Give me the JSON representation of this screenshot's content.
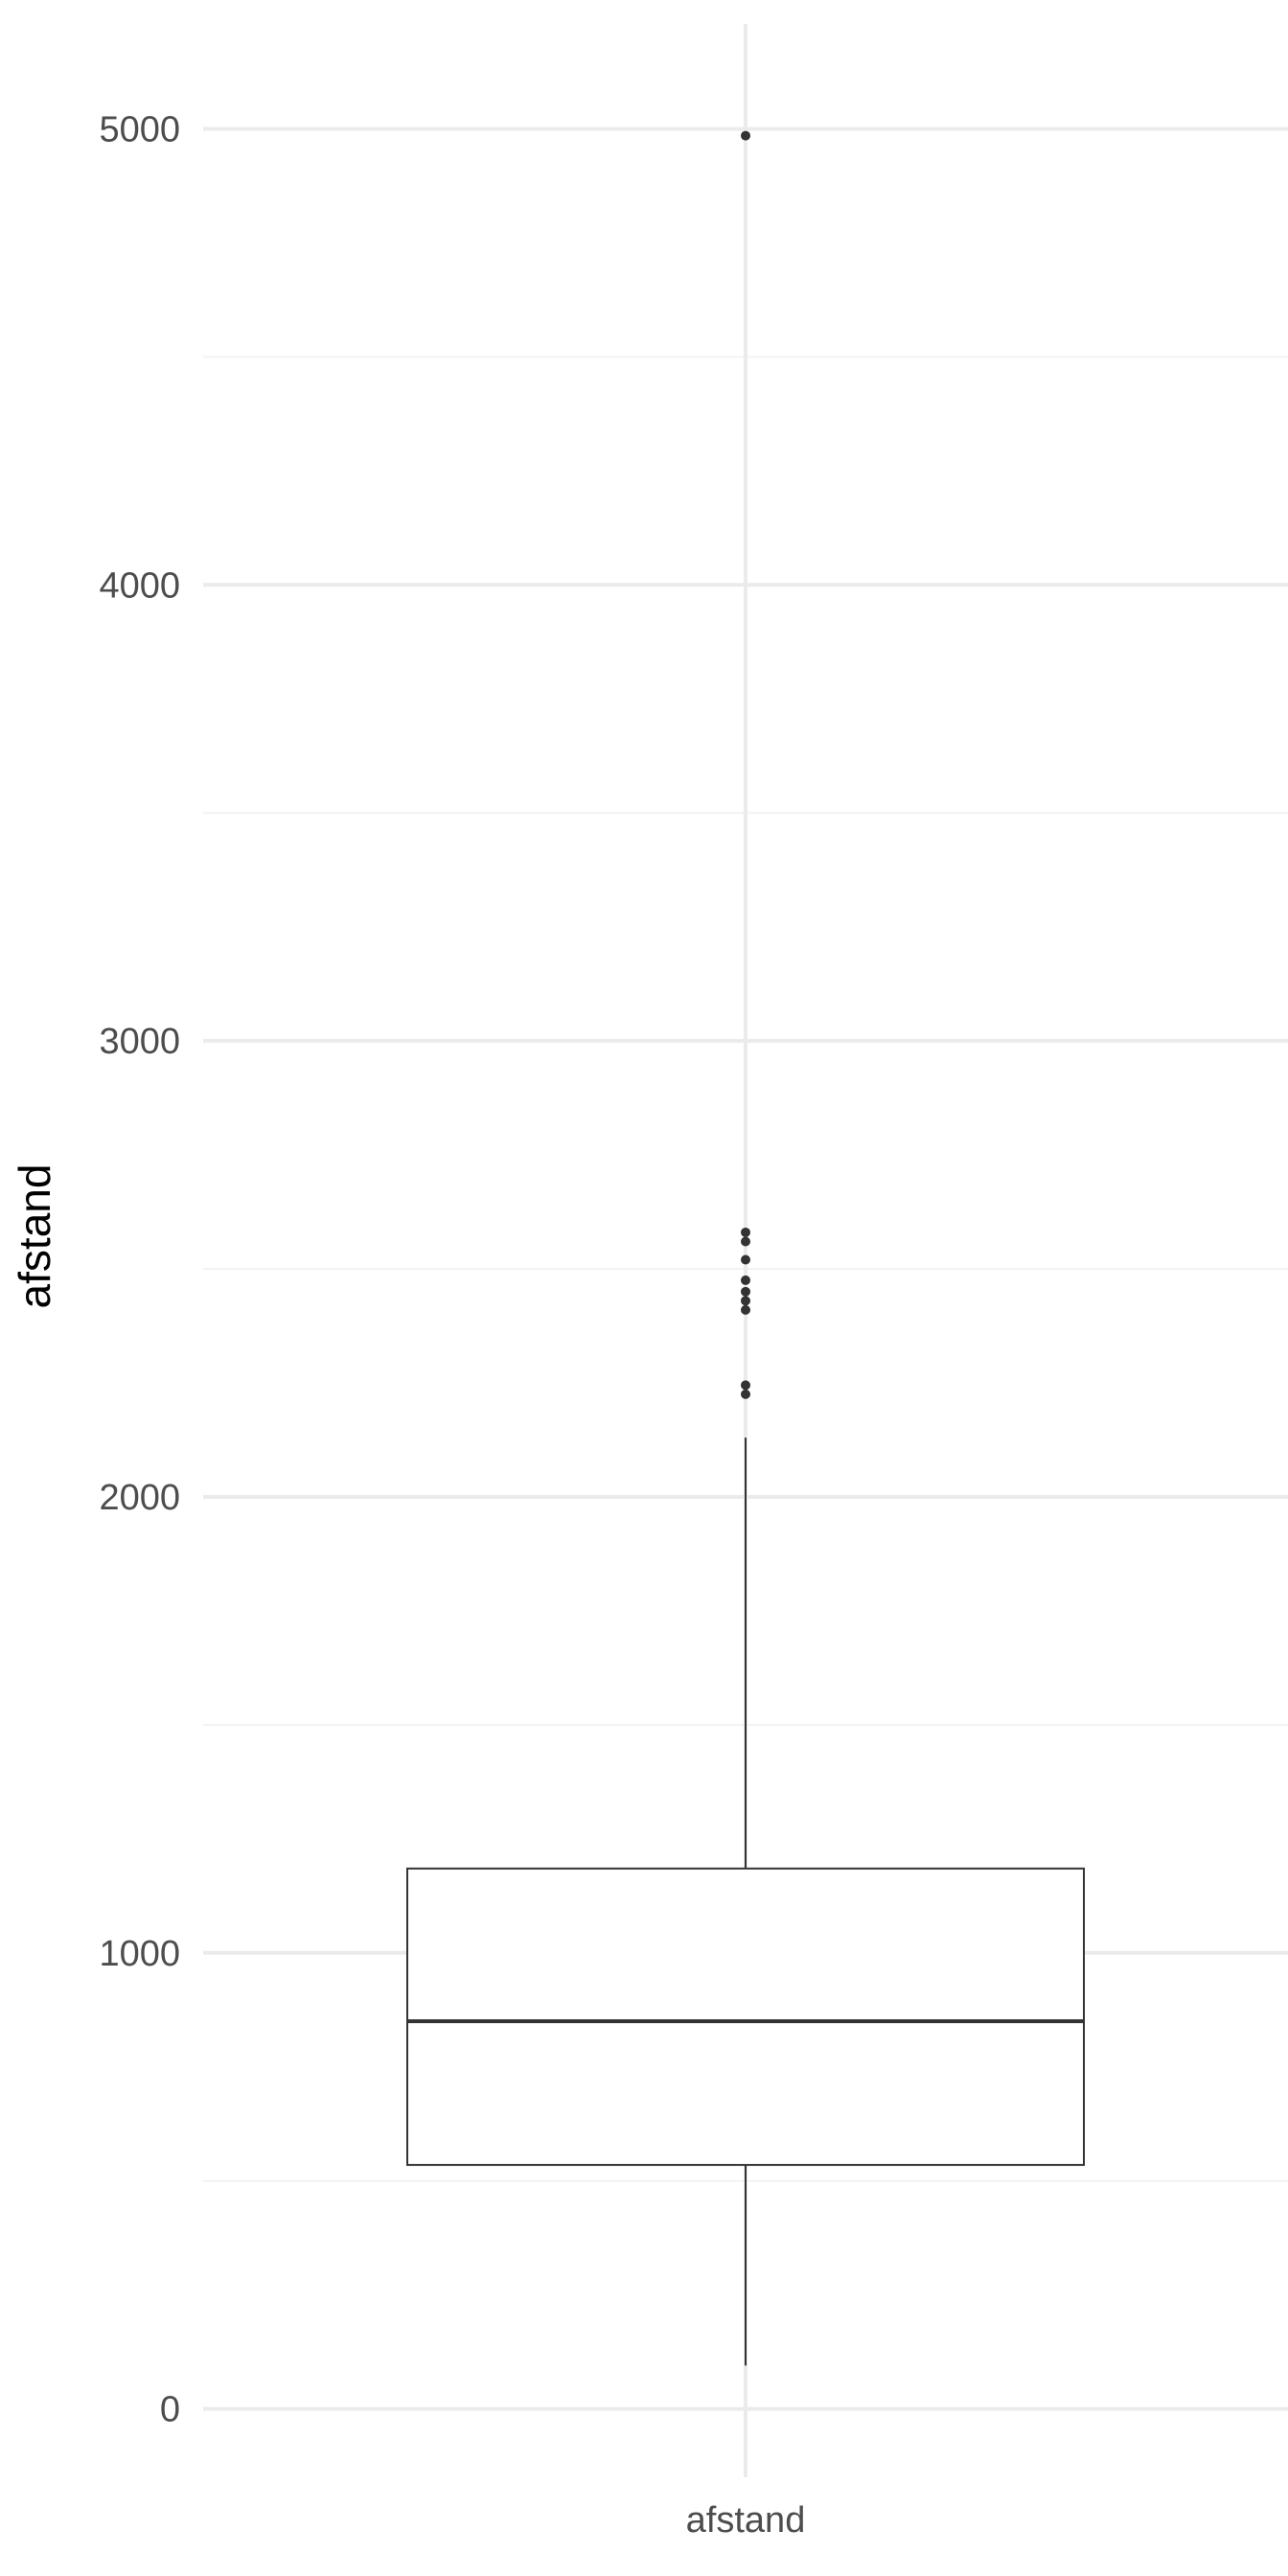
{
  "chart_data": {
    "type": "boxplot",
    "title": "",
    "xlabel": "",
    "ylabel": "afstand",
    "categories": [
      "afstand"
    ],
    "ylim": [
      -150,
      5230
    ],
    "y_ticks": [
      0,
      1000,
      2000,
      3000,
      4000,
      5000
    ],
    "y_minor_ticks": [
      500,
      1500,
      2500,
      3500,
      4500
    ],
    "grid": true,
    "legend": "none",
    "boxes": [
      {
        "category": "afstand",
        "whisker_low": 95,
        "q1": 535,
        "median": 850,
        "q3": 1185,
        "whisker_high": 2130,
        "outliers": [
          2225,
          2245,
          2410,
          2430,
          2450,
          2475,
          2520,
          2560,
          2580,
          4985
        ]
      }
    ],
    "colors": {
      "grid_major": "#ebebeb",
      "grid_minor": "#f3f3f3",
      "box_line": "#333333",
      "box_fill": "#ffffff",
      "outlier": "#333333",
      "tick_text": "#4d4d4d",
      "title_text": "#000000"
    }
  }
}
